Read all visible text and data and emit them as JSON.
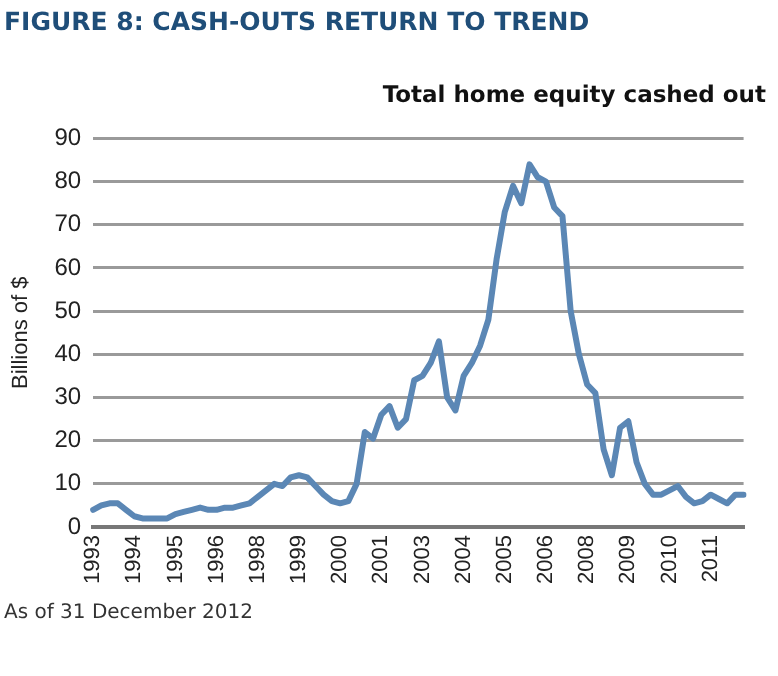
{
  "chart_data": {
    "type": "line",
    "title": "FIGURE 8: CASH-OUTS RETURN TO TREND",
    "subtitle": "Total home equity cashed out",
    "ylabel": "Billions of $",
    "categories": [
      "1993",
      null,
      null,
      null,
      null,
      "1994",
      null,
      null,
      null,
      null,
      "1995",
      null,
      null,
      null,
      null,
      "1996",
      null,
      null,
      null,
      null,
      "1998",
      null,
      null,
      null,
      null,
      "1999",
      null,
      null,
      null,
      null,
      "2000",
      null,
      null,
      null,
      null,
      "2001",
      null,
      null,
      null,
      null,
      "2003",
      null,
      null,
      null,
      null,
      "2004",
      null,
      null,
      null,
      null,
      "2005",
      null,
      null,
      null,
      null,
      "2006",
      null,
      null,
      null,
      null,
      "2008",
      null,
      null,
      null,
      null,
      "2009",
      null,
      null,
      null,
      null,
      "2010",
      null,
      null,
      null,
      null,
      "2011",
      null,
      null,
      null,
      null
    ],
    "series": [
      {
        "color": "#5b87b5",
        "values": [
          4,
          5,
          5.5,
          5.5,
          4,
          2.5,
          2,
          2,
          2,
          2,
          3,
          3.5,
          4,
          4.5,
          4,
          4,
          4.5,
          4.5,
          5,
          5.5,
          7,
          8.5,
          10,
          9.5,
          11.5,
          12,
          11.5,
          9.5,
          7.5,
          6,
          5.5,
          6,
          10,
          22,
          20.5,
          26,
          28,
          23,
          25,
          34,
          35,
          38,
          43,
          30,
          27,
          35,
          38,
          42,
          48,
          62,
          73,
          79,
          75,
          84,
          81,
          80,
          74,
          72,
          50,
          40,
          33,
          31,
          18,
          12,
          23,
          24.5,
          15,
          10,
          7.5,
          7.5,
          8.5,
          9.5,
          7,
          5.5,
          6,
          7.5,
          6.5,
          5.5,
          7.5,
          7.5
        ]
      }
    ],
    "ylim": [
      0,
      90
    ],
    "yticks": [
      0,
      10,
      20,
      30,
      40,
      50,
      60,
      70,
      80,
      90
    ],
    "grid": "y",
    "legend": false,
    "marker": "none",
    "line_style": "solid",
    "annotations": [
      "As of 31 December 2012"
    ]
  }
}
